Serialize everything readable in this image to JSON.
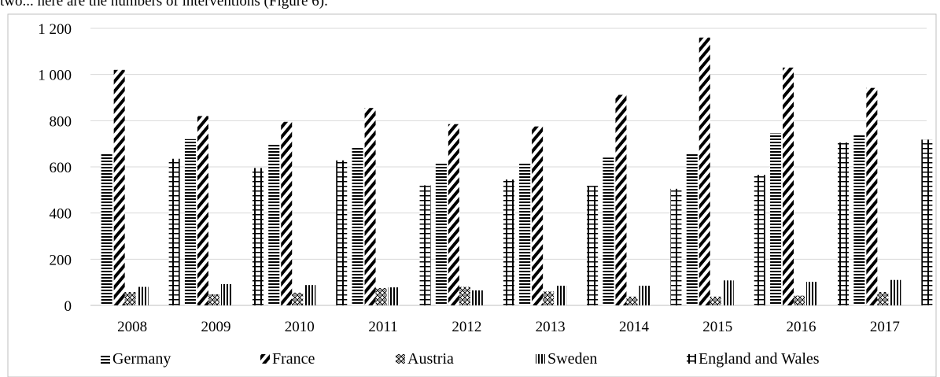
{
  "caption_fragment": "two...  here are the numbers of interventions (Figure 6).",
  "chart_data": {
    "type": "bar",
    "categories": [
      "2008",
      "2009",
      "2010",
      "2011",
      "2012",
      "2013",
      "2014",
      "2015",
      "2016",
      "2017"
    ],
    "series": [
      {
        "name": "Germany",
        "pattern": "horizontal-lines",
        "values": [
          655,
          720,
          695,
          688,
          615,
          620,
          640,
          655,
          745,
          738
        ]
      },
      {
        "name": "France",
        "pattern": "wide-diagonal",
        "values": [
          1020,
          820,
          795,
          855,
          785,
          775,
          912,
          1160,
          1030,
          942
        ]
      },
      {
        "name": "Austria",
        "pattern": "checker",
        "values": [
          58,
          48,
          55,
          75,
          80,
          60,
          38,
          38,
          42,
          58
        ]
      },
      {
        "name": "Sweden",
        "pattern": "vertical-lines",
        "values": [
          80,
          92,
          88,
          78,
          65,
          85,
          85,
          108,
          102,
          110
        ]
      },
      {
        "name": "England and Wales",
        "pattern": "cross-hatch",
        "values": [
          635,
          595,
          628,
          520,
          545,
          518,
          505,
          565,
          705,
          718
        ]
      }
    ],
    "yticks": [
      "0",
      "200",
      "400",
      "600",
      "800",
      "1 000",
      "1 200"
    ],
    "ylim": [
      0,
      1200
    ],
    "grid": true,
    "legend": "bottom",
    "colors": {
      "bars": "#000000",
      "grid": "#d9d9d9",
      "axis": "#bfbfbf"
    }
  }
}
